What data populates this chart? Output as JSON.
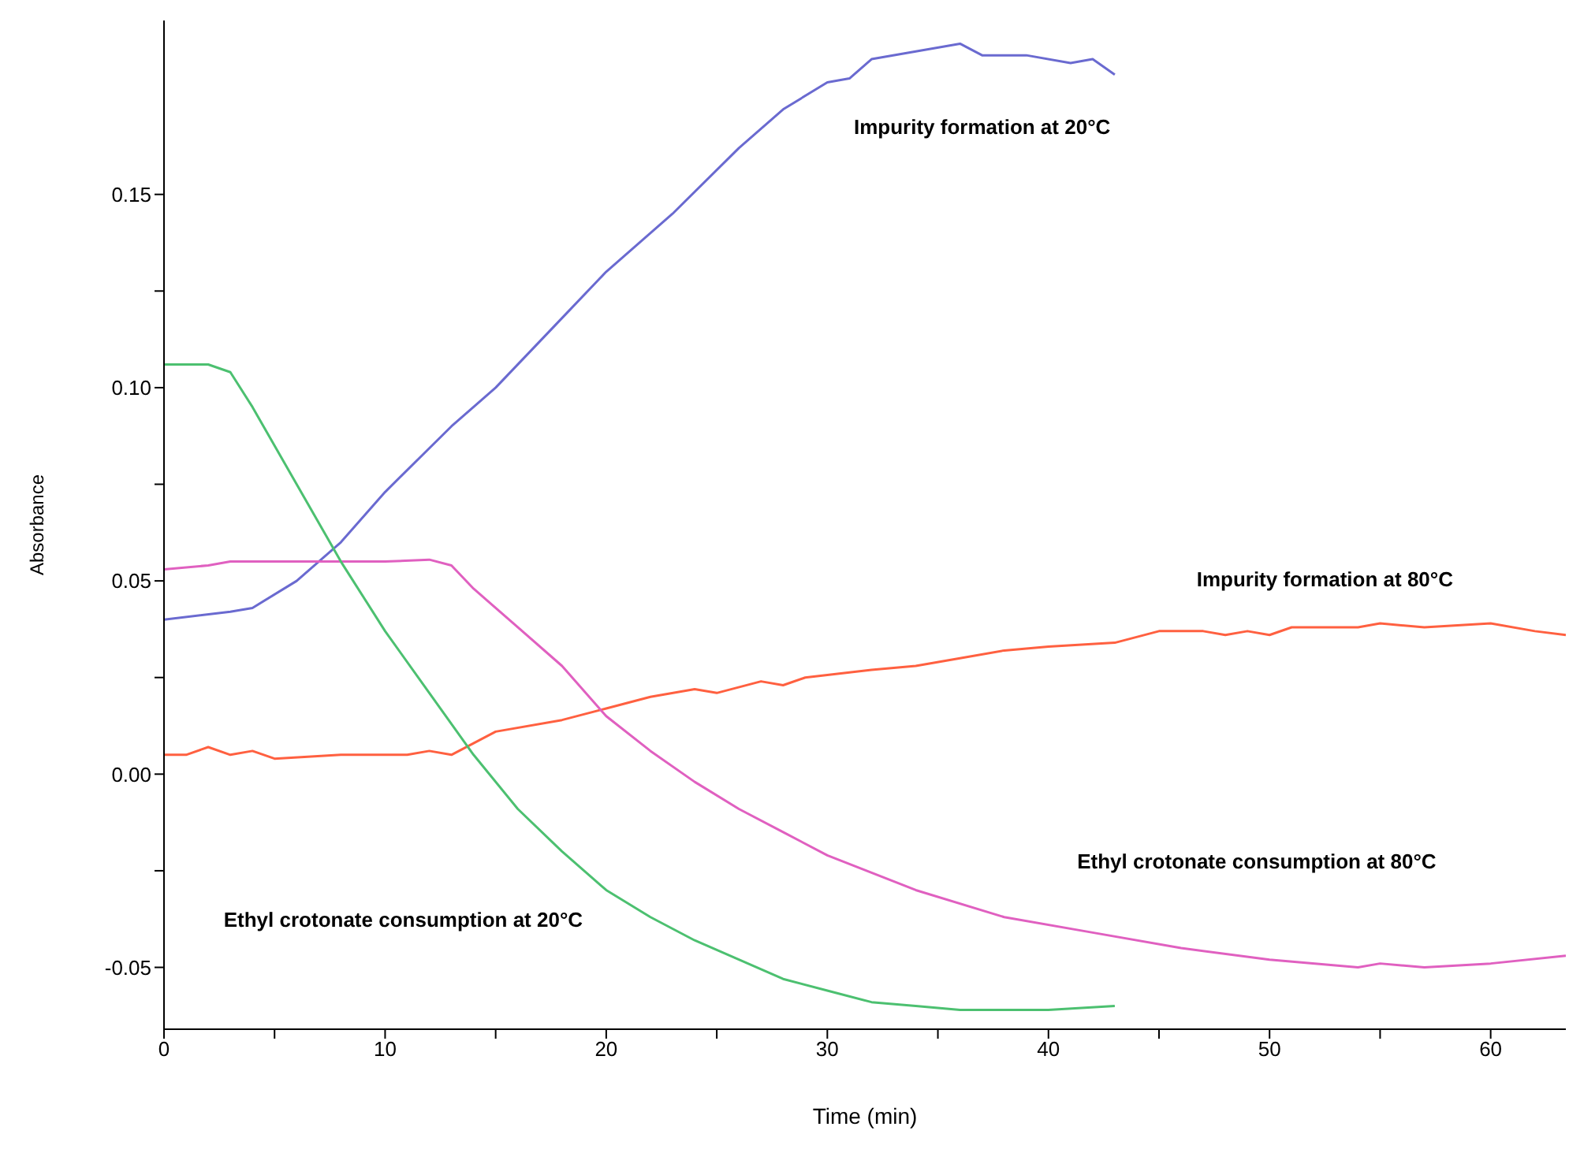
{
  "chart_data": {
    "type": "line",
    "xlabel": "Time (min)",
    "ylabel": "Absorbance",
    "xlim": [
      0,
      63.4
    ],
    "ylim": [
      -0.066,
      0.195
    ],
    "xticks": [
      0,
      {
        "value": 5,
        "label": null
      },
      10,
      {
        "value": 15,
        "label": null
      },
      20,
      {
        "value": 25,
        "label": null
      },
      30,
      {
        "value": 35,
        "label": null
      },
      40,
      {
        "value": 45,
        "label": null
      },
      50,
      {
        "value": 55,
        "label": null
      },
      60
    ],
    "yticks": [
      {
        "value": -0.05,
        "label": "-0.05"
      },
      {
        "value": -0.025,
        "label": null
      },
      {
        "value": 0,
        "label": "0.00"
      },
      {
        "value": 0.025,
        "label": null
      },
      {
        "value": 0.05,
        "label": "0.05"
      },
      {
        "value": 0.075,
        "label": null
      },
      {
        "value": 0.1,
        "label": "0.10"
      },
      {
        "value": 0.125,
        "label": null
      },
      {
        "value": 0.15,
        "label": "0.15"
      }
    ],
    "grid": false,
    "legend": false,
    "marker": "none",
    "line_style": "solid",
    "series": [
      {
        "name": "Impurity formation at 20°C",
        "color": "#6a6ad0",
        "x": [
          0,
          3,
          4,
          6,
          8,
          10,
          13,
          15,
          18,
          20,
          23,
          26,
          28,
          30,
          31,
          32,
          34,
          36,
          37,
          39,
          41,
          42,
          43
        ],
        "values": [
          0.04,
          0.042,
          0.043,
          0.05,
          0.06,
          0.073,
          0.09,
          0.1,
          0.118,
          0.13,
          0.145,
          0.162,
          0.172,
          0.179,
          0.18,
          0.185,
          0.187,
          0.189,
          0.186,
          0.186,
          0.184,
          0.185,
          0.181
        ]
      },
      {
        "name": "Impurity formation at 80°C",
        "color": "#ff6040",
        "x": [
          0,
          1,
          2,
          3,
          4,
          5,
          8,
          11,
          12,
          13,
          14,
          15,
          18,
          20,
          22,
          24,
          25,
          27,
          28,
          29,
          32,
          34,
          36,
          38,
          40,
          43,
          45,
          47,
          48,
          49,
          50,
          51,
          54,
          55,
          57,
          60,
          62,
          63.4
        ],
        "values": [
          0.005,
          0.005,
          0.007,
          0.005,
          0.006,
          0.004,
          0.005,
          0.005,
          0.006,
          0.005,
          0.008,
          0.011,
          0.014,
          0.017,
          0.02,
          0.022,
          0.021,
          0.024,
          0.023,
          0.025,
          0.027,
          0.028,
          0.03,
          0.032,
          0.033,
          0.034,
          0.037,
          0.037,
          0.036,
          0.037,
          0.036,
          0.038,
          0.038,
          0.039,
          0.038,
          0.039,
          0.037,
          0.036
        ]
      },
      {
        "name": "Ethyl crotonate consumption at 80°C",
        "color": "#e060c0",
        "x": [
          0,
          2,
          3,
          6,
          10,
          12,
          13,
          14,
          16,
          18,
          20,
          22,
          24,
          26,
          28,
          30,
          34,
          38,
          42,
          46,
          50,
          54,
          55,
          57,
          60,
          63.4
        ],
        "values": [
          0.053,
          0.054,
          0.055,
          0.055,
          0.055,
          0.0555,
          0.054,
          0.048,
          0.038,
          0.028,
          0.015,
          0.006,
          -0.002,
          -0.009,
          -0.015,
          -0.021,
          -0.03,
          -0.037,
          -0.041,
          -0.045,
          -0.048,
          -0.05,
          -0.049,
          -0.05,
          -0.049,
          -0.047
        ]
      },
      {
        "name": "Ethyl crotonate consumption at 20°C",
        "color": "#4cc070",
        "x": [
          0,
          2,
          3,
          4,
          6,
          8,
          10,
          12,
          14,
          16,
          18,
          20,
          22,
          24,
          26,
          28,
          30,
          32,
          34,
          36,
          38,
          40,
          43
        ],
        "values": [
          0.106,
          0.106,
          0.104,
          0.095,
          0.075,
          0.055,
          0.037,
          0.021,
          0.005,
          -0.009,
          -0.02,
          -0.03,
          -0.037,
          -0.043,
          -0.048,
          -0.053,
          -0.056,
          -0.059,
          -0.06,
          -0.061,
          -0.061,
          -0.061,
          -0.06
        ]
      }
    ]
  }
}
